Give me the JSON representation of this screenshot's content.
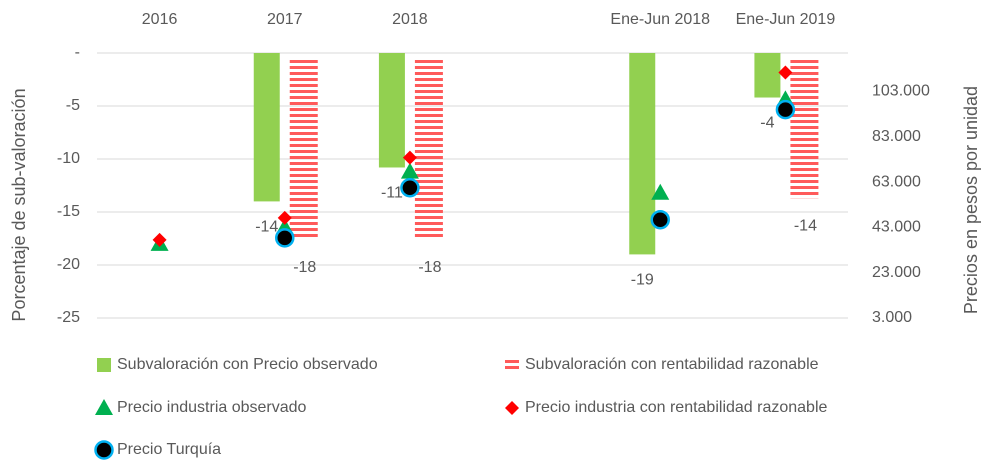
{
  "chart_data": {
    "type": "bar",
    "categories": [
      "2016",
      "2017",
      "2018",
      null,
      "Ene-Jun 2018",
      "Ene-Jun 2019"
    ],
    "y_label": "Porcentaje de sub-valoración",
    "y2_label": "Precios en pesos por unidad",
    "ylim": [
      -25,
      0
    ],
    "yticks": [
      {
        "value": 0,
        "label": "-"
      },
      -5,
      -10,
      -15,
      -20,
      -25
    ],
    "y2lim": [
      3000,
      120000
    ],
    "y2ticks": [
      {
        "value": 103000,
        "label": "103.000"
      },
      {
        "value": 83000,
        "label": "83.000"
      },
      {
        "value": 63000,
        "label": "63.000"
      },
      {
        "value": 43000,
        "label": "43.000"
      },
      {
        "value": 23000,
        "label": "23.000"
      },
      {
        "value": 3000,
        "label": "3.000"
      }
    ],
    "grid": true,
    "legend": "bottom",
    "series": [
      {
        "name": "Subvaloración con Precio observado",
        "type": "bar",
        "color": "#92d050",
        "pattern": "solid",
        "values": [
          null,
          -14,
          -10.8,
          null,
          -19,
          -4.2
        ],
        "value_labels": [
          null,
          "-14",
          "-11",
          null,
          "-19",
          "-4"
        ]
      },
      {
        "name": "Subvaloración con rentabilidad razonable",
        "type": "bar",
        "color": "#ff5a5a",
        "pattern": "horizontal-stripes",
        "values": [
          null,
          -17.6,
          -17.6,
          null,
          null,
          -13.7
        ],
        "value_labels": [
          null,
          "-18",
          "-18",
          null,
          null,
          "-14"
        ]
      },
      {
        "name": "Precio industria observado",
        "type": "scatter",
        "marker": "triangle",
        "color": "#00b050",
        "axis": "y2",
        "values": [
          35700,
          43000,
          67600,
          null,
          58300,
          99500
        ]
      },
      {
        "name": "Precio industria con rentabilidad razonable",
        "type": "scatter",
        "marker": "diamond",
        "color": "#ff0000",
        "axis": "y2",
        "values": [
          37500,
          47200,
          73800,
          null,
          null,
          111400
        ]
      },
      {
        "name": "Precio Turquía",
        "type": "scatter",
        "marker": "circle",
        "color": "#000000",
        "edge_color": "#00b0f0",
        "axis": "y2",
        "values": [
          null,
          38400,
          60500,
          null,
          46400,
          95000
        ]
      }
    ]
  }
}
